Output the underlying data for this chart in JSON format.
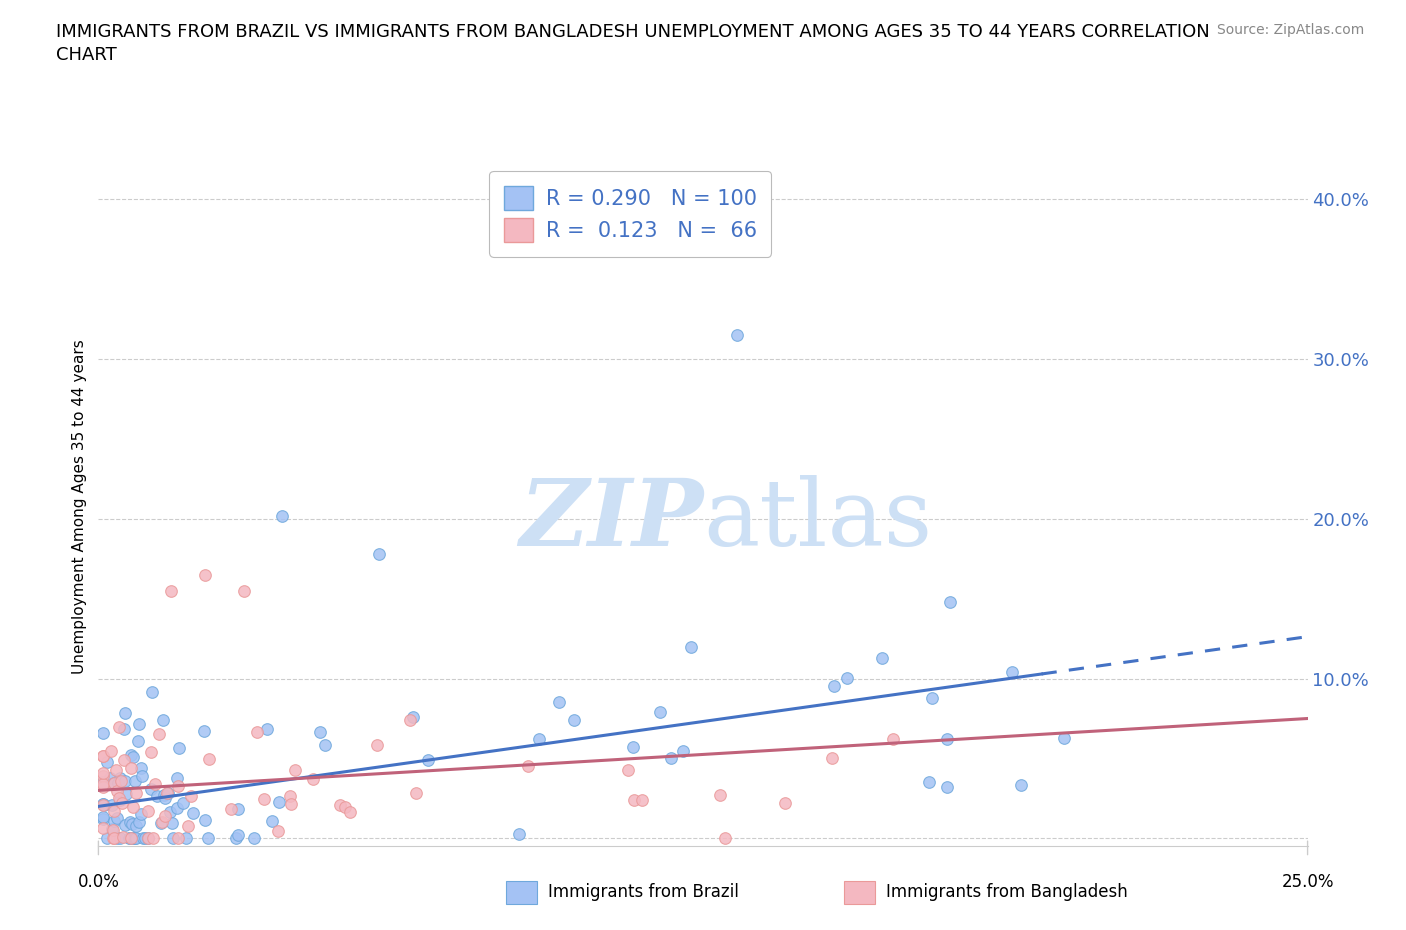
{
  "title_line1": "IMMIGRANTS FROM BRAZIL VS IMMIGRANTS FROM BANGLADESH UNEMPLOYMENT AMONG AGES 35 TO 44 YEARS CORRELATION",
  "title_line2": "CHART",
  "source_text": "Source: ZipAtlas.com",
  "ylabel": "Unemployment Among Ages 35 to 44 years",
  "xlim": [
    0.0,
    0.25
  ],
  "ylim": [
    -0.005,
    0.42
  ],
  "yticks": [
    0.0,
    0.1,
    0.2,
    0.3,
    0.4
  ],
  "ytick_labels": [
    "",
    "10.0%",
    "20.0%",
    "30.0%",
    "40.0%"
  ],
  "blue_R": 0.29,
  "blue_N": 100,
  "pink_R": 0.123,
  "pink_N": 66,
  "blue_color": "#a4c2f4",
  "pink_color": "#f4b8c1",
  "blue_edge": "#6fa8dc",
  "pink_edge": "#ea9999",
  "trend_blue": "#4472c4",
  "trend_pink": "#c0627a",
  "legend_label_blue": "Immigrants from Brazil",
  "legend_label_pink": "Immigrants from Bangladesh",
  "watermark_color": "#cde0f5",
  "grid_color": "#cccccc"
}
